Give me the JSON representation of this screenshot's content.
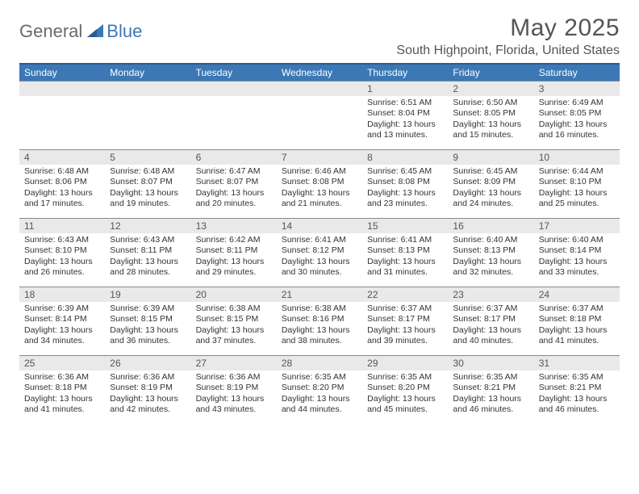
{
  "brand": {
    "part1": "General",
    "part2": "Blue"
  },
  "title": "May 2025",
  "location": "South Highpoint, Florida, United States",
  "colors": {
    "header_bg": "#3b78b5",
    "header_border": "#2b5b8f",
    "daynum_bg": "#e9e9e9",
    "text": "#333333",
    "title_text": "#555555"
  },
  "day_labels": [
    "Sunday",
    "Monday",
    "Tuesday",
    "Wednesday",
    "Thursday",
    "Friday",
    "Saturday"
  ],
  "weeks": [
    [
      null,
      null,
      null,
      null,
      {
        "n": "1",
        "sr": "6:51 AM",
        "ss": "8:04 PM",
        "dl": "13 hours and 13 minutes."
      },
      {
        "n": "2",
        "sr": "6:50 AM",
        "ss": "8:05 PM",
        "dl": "13 hours and 15 minutes."
      },
      {
        "n": "3",
        "sr": "6:49 AM",
        "ss": "8:05 PM",
        "dl": "13 hours and 16 minutes."
      }
    ],
    [
      {
        "n": "4",
        "sr": "6:48 AM",
        "ss": "8:06 PM",
        "dl": "13 hours and 17 minutes."
      },
      {
        "n": "5",
        "sr": "6:48 AM",
        "ss": "8:07 PM",
        "dl": "13 hours and 19 minutes."
      },
      {
        "n": "6",
        "sr": "6:47 AM",
        "ss": "8:07 PM",
        "dl": "13 hours and 20 minutes."
      },
      {
        "n": "7",
        "sr": "6:46 AM",
        "ss": "8:08 PM",
        "dl": "13 hours and 21 minutes."
      },
      {
        "n": "8",
        "sr": "6:45 AM",
        "ss": "8:08 PM",
        "dl": "13 hours and 23 minutes."
      },
      {
        "n": "9",
        "sr": "6:45 AM",
        "ss": "8:09 PM",
        "dl": "13 hours and 24 minutes."
      },
      {
        "n": "10",
        "sr": "6:44 AM",
        "ss": "8:10 PM",
        "dl": "13 hours and 25 minutes."
      }
    ],
    [
      {
        "n": "11",
        "sr": "6:43 AM",
        "ss": "8:10 PM",
        "dl": "13 hours and 26 minutes."
      },
      {
        "n": "12",
        "sr": "6:43 AM",
        "ss": "8:11 PM",
        "dl": "13 hours and 28 minutes."
      },
      {
        "n": "13",
        "sr": "6:42 AM",
        "ss": "8:11 PM",
        "dl": "13 hours and 29 minutes."
      },
      {
        "n": "14",
        "sr": "6:41 AM",
        "ss": "8:12 PM",
        "dl": "13 hours and 30 minutes."
      },
      {
        "n": "15",
        "sr": "6:41 AM",
        "ss": "8:13 PM",
        "dl": "13 hours and 31 minutes."
      },
      {
        "n": "16",
        "sr": "6:40 AM",
        "ss": "8:13 PM",
        "dl": "13 hours and 32 minutes."
      },
      {
        "n": "17",
        "sr": "6:40 AM",
        "ss": "8:14 PM",
        "dl": "13 hours and 33 minutes."
      }
    ],
    [
      {
        "n": "18",
        "sr": "6:39 AM",
        "ss": "8:14 PM",
        "dl": "13 hours and 34 minutes."
      },
      {
        "n": "19",
        "sr": "6:39 AM",
        "ss": "8:15 PM",
        "dl": "13 hours and 36 minutes."
      },
      {
        "n": "20",
        "sr": "6:38 AM",
        "ss": "8:15 PM",
        "dl": "13 hours and 37 minutes."
      },
      {
        "n": "21",
        "sr": "6:38 AM",
        "ss": "8:16 PM",
        "dl": "13 hours and 38 minutes."
      },
      {
        "n": "22",
        "sr": "6:37 AM",
        "ss": "8:17 PM",
        "dl": "13 hours and 39 minutes."
      },
      {
        "n": "23",
        "sr": "6:37 AM",
        "ss": "8:17 PM",
        "dl": "13 hours and 40 minutes."
      },
      {
        "n": "24",
        "sr": "6:37 AM",
        "ss": "8:18 PM",
        "dl": "13 hours and 41 minutes."
      }
    ],
    [
      {
        "n": "25",
        "sr": "6:36 AM",
        "ss": "8:18 PM",
        "dl": "13 hours and 41 minutes."
      },
      {
        "n": "26",
        "sr": "6:36 AM",
        "ss": "8:19 PM",
        "dl": "13 hours and 42 minutes."
      },
      {
        "n": "27",
        "sr": "6:36 AM",
        "ss": "8:19 PM",
        "dl": "13 hours and 43 minutes."
      },
      {
        "n": "28",
        "sr": "6:35 AM",
        "ss": "8:20 PM",
        "dl": "13 hours and 44 minutes."
      },
      {
        "n": "29",
        "sr": "6:35 AM",
        "ss": "8:20 PM",
        "dl": "13 hours and 45 minutes."
      },
      {
        "n": "30",
        "sr": "6:35 AM",
        "ss": "8:21 PM",
        "dl": "13 hours and 46 minutes."
      },
      {
        "n": "31",
        "sr": "6:35 AM",
        "ss": "8:21 PM",
        "dl": "13 hours and 46 minutes."
      }
    ]
  ],
  "labels": {
    "sunrise": "Sunrise:",
    "sunset": "Sunset:",
    "daylight": "Daylight:"
  }
}
